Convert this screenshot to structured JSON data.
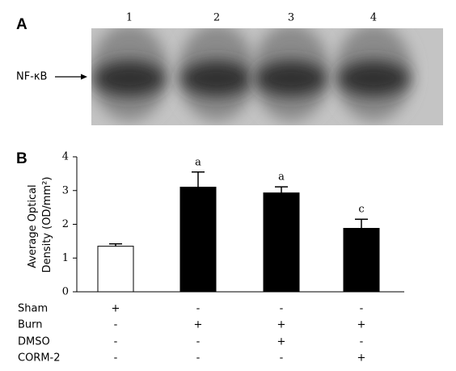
{
  "blot": {
    "panel_label": "A",
    "lanes": [
      "1",
      "2",
      "3",
      "4"
    ],
    "band_label": "NF-κB"
  },
  "chart_data": {
    "type": "bar",
    "panel_label": "B",
    "y_label": [
      "Average Optical",
      "Density (OD/mm²)"
    ],
    "values": [
      1.35,
      3.1,
      2.93,
      1.88
    ],
    "errors": [
      0.07,
      0.45,
      0.18,
      0.27
    ],
    "colors": [
      "#ffffff",
      "#000000",
      "#000000",
      "#000000"
    ],
    "annotations": [
      null,
      "a",
      "a",
      "c"
    ],
    "ylim": [
      0,
      4
    ],
    "yticks": [
      0,
      1,
      2,
      3,
      4
    ],
    "treatments": [
      {
        "name": "Sham",
        "signs": [
          "+",
          "-",
          "-",
          "-"
        ]
      },
      {
        "name": "Burn",
        "signs": [
          "-",
          "+",
          "+",
          "+"
        ]
      },
      {
        "name": "DMSO",
        "signs": [
          "-",
          "-",
          "+",
          "-"
        ]
      },
      {
        "name": "CORM-2",
        "signs": [
          "-",
          "-",
          "-",
          "+"
        ]
      }
    ]
  }
}
